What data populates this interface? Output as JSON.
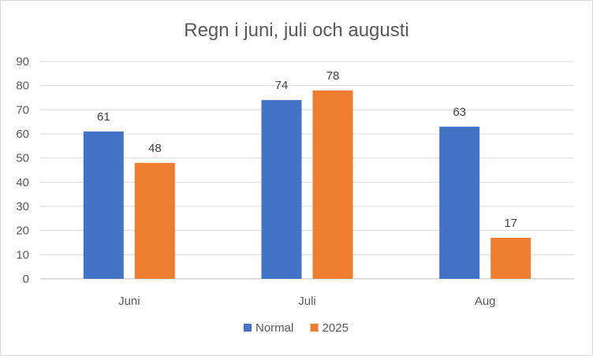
{
  "chart_data": {
    "type": "bar",
    "title": "Regn i juni, juli och augusti",
    "categories": [
      "Juni",
      "Juli",
      "Aug"
    ],
    "series": [
      {
        "name": "Normal",
        "values": [
          61,
          74,
          63
        ],
        "color": "#4472C4"
      },
      {
        "name": "2025",
        "values": [
          48,
          78,
          17
        ],
        "color": "#ED7D31"
      }
    ],
    "ylim": [
      0,
      90
    ],
    "yticks": [
      0,
      10,
      20,
      30,
      40,
      50,
      60,
      70,
      80,
      90
    ],
    "grid": true,
    "legend": "bottom",
    "data_labels": true
  }
}
